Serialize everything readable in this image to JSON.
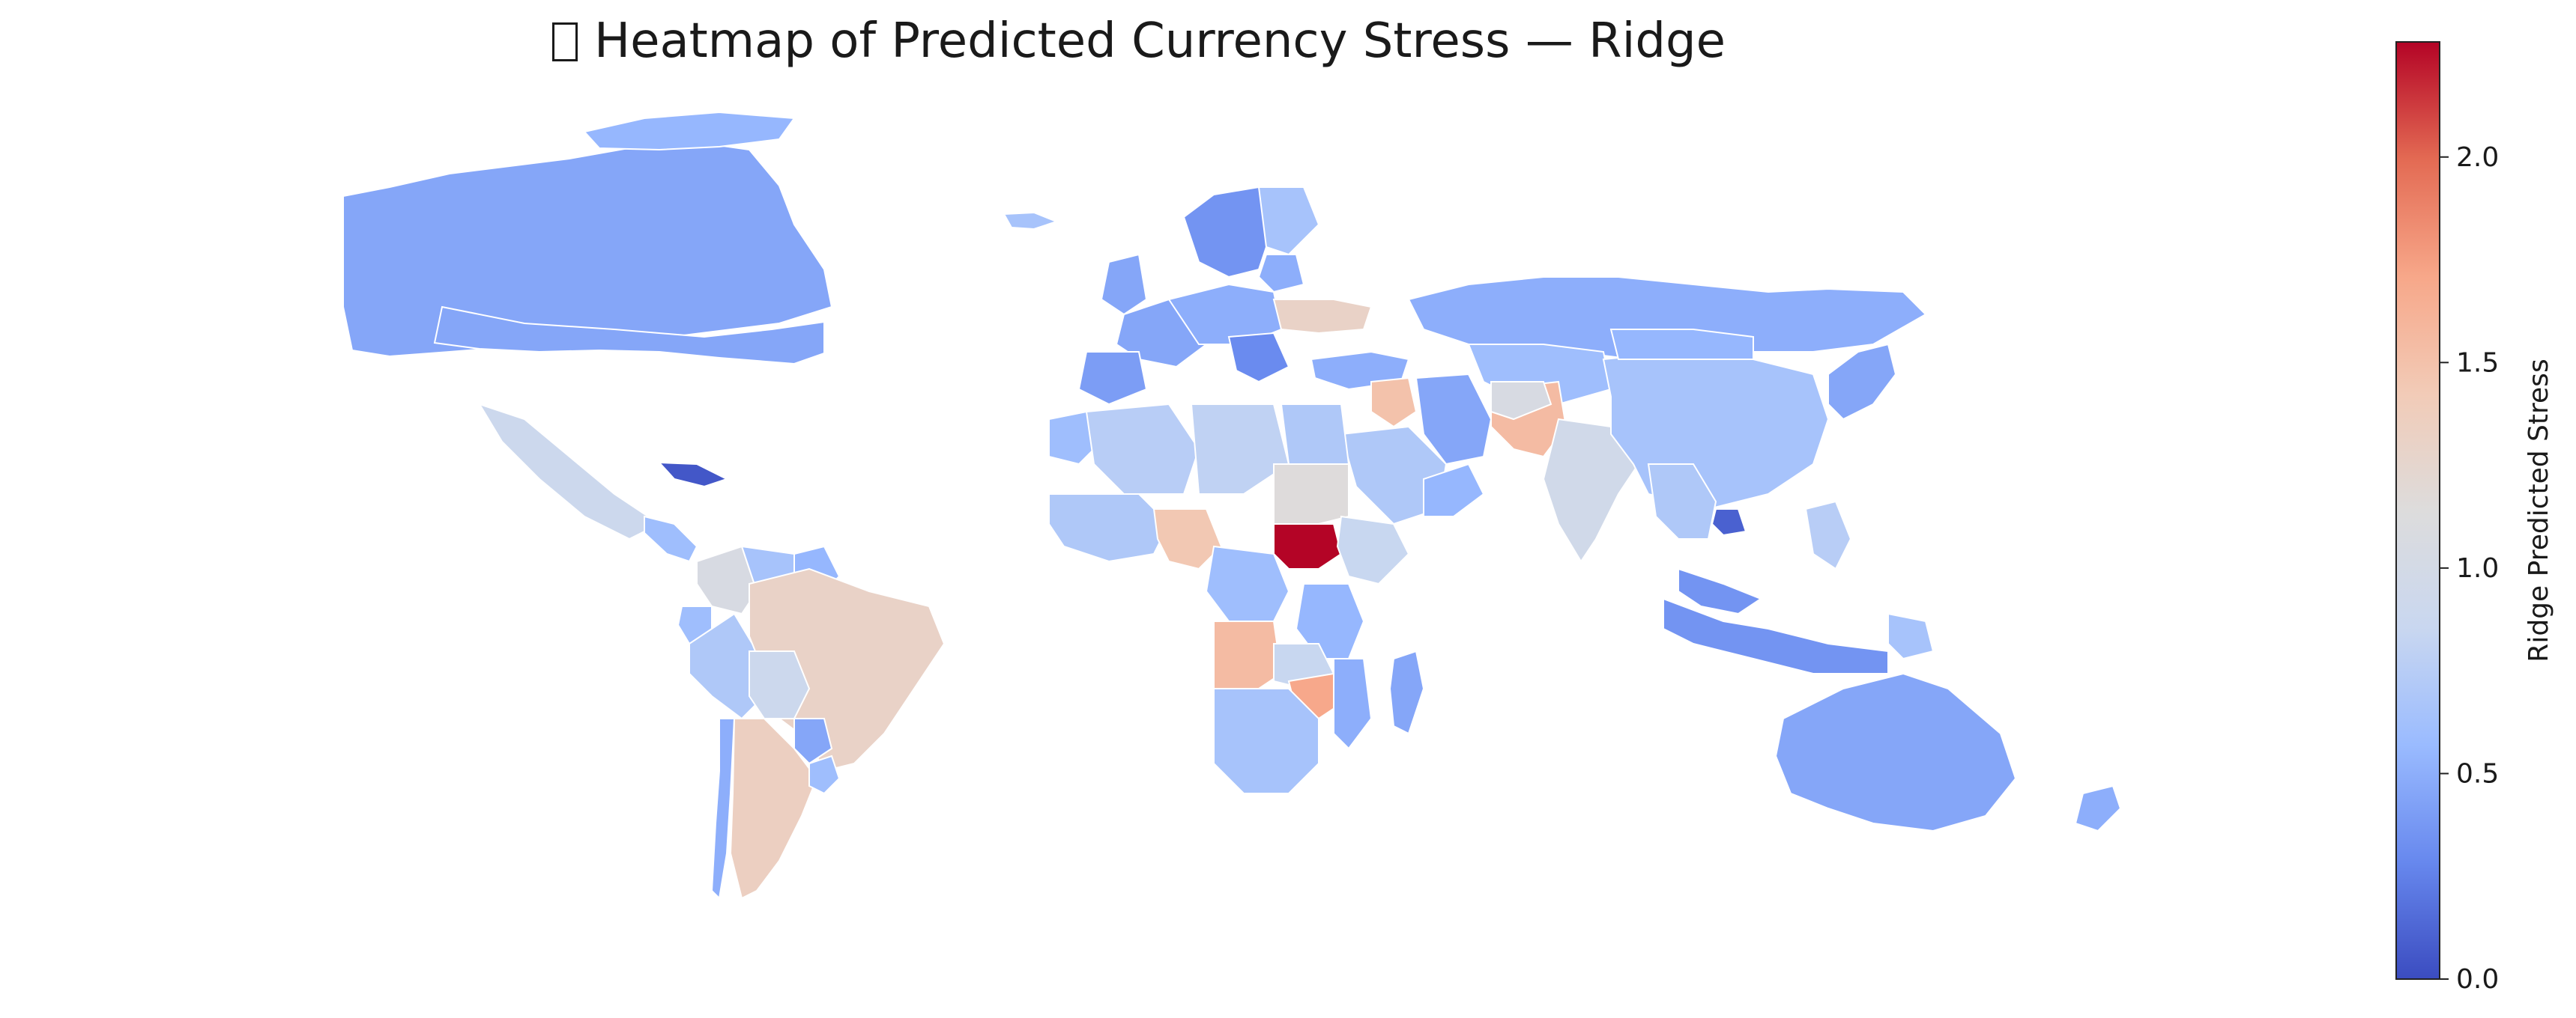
{
  "title": {
    "icon": "missing-glyph-icon",
    "text": "Heatmap of Predicted Currency Stress — Ridge"
  },
  "colorbar": {
    "label": "Ridge Predicted Stress",
    "colormap": "coolwarm",
    "min": 0.0,
    "max": 2.28,
    "ticks": [
      {
        "value": 0.0,
        "label": "0.0"
      },
      {
        "value": 0.5,
        "label": "0.5"
      },
      {
        "value": 1.0,
        "label": "1.0"
      },
      {
        "value": 1.5,
        "label": "1.5"
      },
      {
        "value": 2.0,
        "label": "2.0"
      }
    ],
    "gradient_colors": [
      "#3b4cc0",
      "#6788ee",
      "#9abbff",
      "#c9d7f0",
      "#dddcdc",
      "#f2cbb7",
      "#f7a789",
      "#e36a53",
      "#b40426"
    ]
  },
  "regions": [
    {
      "name": "canada",
      "value": 0.45
    },
    {
      "name": "usa-alaska",
      "value": 0.45
    },
    {
      "name": "greenland-group",
      "value": 0.55
    },
    {
      "name": "mexico",
      "value": 0.9
    },
    {
      "name": "central-america",
      "value": 0.6
    },
    {
      "name": "cuba",
      "value": 0.05
    },
    {
      "name": "colombia",
      "value": 1.05
    },
    {
      "name": "venezuela",
      "value": 0.65
    },
    {
      "name": "guyana",
      "value": 0.55
    },
    {
      "name": "ecuador",
      "value": 0.6
    },
    {
      "name": "peru",
      "value": 0.7
    },
    {
      "name": "brazil",
      "value": 1.3
    },
    {
      "name": "bolivia",
      "value": 0.9
    },
    {
      "name": "paraguay",
      "value": 0.45
    },
    {
      "name": "chile",
      "value": 0.5
    },
    {
      "name": "argentina",
      "value": 1.35
    },
    {
      "name": "uruguay",
      "value": 0.6
    },
    {
      "name": "iceland",
      "value": 0.65
    },
    {
      "name": "scandinavia",
      "value": 0.35
    },
    {
      "name": "finland",
      "value": 0.65
    },
    {
      "name": "baltics",
      "value": 0.5
    },
    {
      "name": "uk-ireland",
      "value": 0.45
    },
    {
      "name": "western-europe",
      "value": 0.45
    },
    {
      "name": "iberia",
      "value": 0.4
    },
    {
      "name": "central-europe",
      "value": 0.5
    },
    {
      "name": "balkans",
      "value": 0.3
    },
    {
      "name": "ukraine",
      "value": 1.3
    },
    {
      "name": "russia",
      "value": 0.5
    },
    {
      "name": "kazakhstan",
      "value": 0.6
    },
    {
      "name": "turkey",
      "value": 0.5
    },
    {
      "name": "iraq",
      "value": 1.5
    },
    {
      "name": "iran",
      "value": 0.45
    },
    {
      "name": "saudi-arabia",
      "value": 0.7
    },
    {
      "name": "oman-yemen",
      "value": 0.55
    },
    {
      "name": "pakistan",
      "value": 1.55
    },
    {
      "name": "afghanistan",
      "value": 1.05
    },
    {
      "name": "india",
      "value": 0.95
    },
    {
      "name": "china",
      "value": 0.65
    },
    {
      "name": "mongolia",
      "value": 0.55
    },
    {
      "name": "korea-japan",
      "value": 0.45
    },
    {
      "name": "southeast-asia",
      "value": 0.7
    },
    {
      "name": "cambodia",
      "value": 0.1
    },
    {
      "name": "malaysia",
      "value": 0.35
    },
    {
      "name": "indonesia",
      "value": 0.35
    },
    {
      "name": "philippines",
      "value": 0.75
    },
    {
      "name": "png",
      "value": 0.65
    },
    {
      "name": "australia",
      "value": 0.45
    },
    {
      "name": "new-zealand",
      "value": 0.5
    },
    {
      "name": "morocco",
      "value": 0.6
    },
    {
      "name": "algeria",
      "value": 0.75
    },
    {
      "name": "libya",
      "value": 0.8
    },
    {
      "name": "egypt",
      "value": 0.7
    },
    {
      "name": "west-africa",
      "value": 0.7
    },
    {
      "name": "nigeria",
      "value": 1.45
    },
    {
      "name": "sudan",
      "value": 1.15
    },
    {
      "name": "south-sudan",
      "value": 2.28
    },
    {
      "name": "ethiopia",
      "value": 0.85
    },
    {
      "name": "central-africa",
      "value": 0.6
    },
    {
      "name": "east-africa",
      "value": 0.55
    },
    {
      "name": "angola",
      "value": 1.55
    },
    {
      "name": "zambia",
      "value": 0.85
    },
    {
      "name": "zimbabwe",
      "value": 1.7
    },
    {
      "name": "mozambique",
      "value": 0.5
    },
    {
      "name": "southern-africa",
      "value": 0.65
    },
    {
      "name": "madagascar",
      "value": 0.45
    }
  ]
}
